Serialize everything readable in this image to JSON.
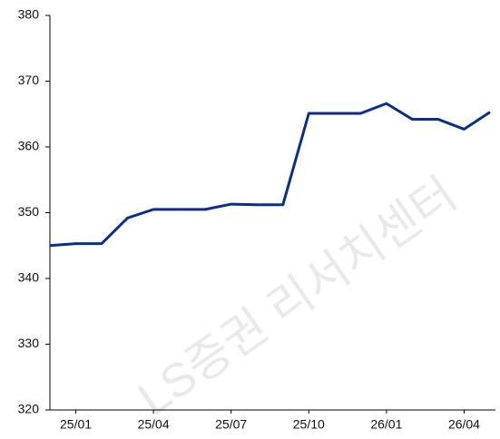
{
  "watermark": "LS증권 리서치센터",
  "chart_data": {
    "type": "line",
    "categories": [
      null,
      "25/01",
      null,
      null,
      "25/04",
      null,
      null,
      "25/07",
      null,
      null,
      "25/10",
      null,
      null,
      "26/01",
      null,
      null,
      "26/04",
      null
    ],
    "values": [
      345.0,
      345.3,
      345.3,
      349.2,
      350.5,
      350.5,
      350.5,
      351.3,
      351.2,
      351.2,
      365.1,
      365.1,
      365.1,
      366.6,
      364.2,
      364.2,
      362.7,
      365.3
    ],
    "color": "#0a2e8c",
    "ylim": [
      320,
      380
    ],
    "yticks": [
      320,
      330,
      340,
      350,
      360,
      370,
      380
    ],
    "grid": false
  }
}
